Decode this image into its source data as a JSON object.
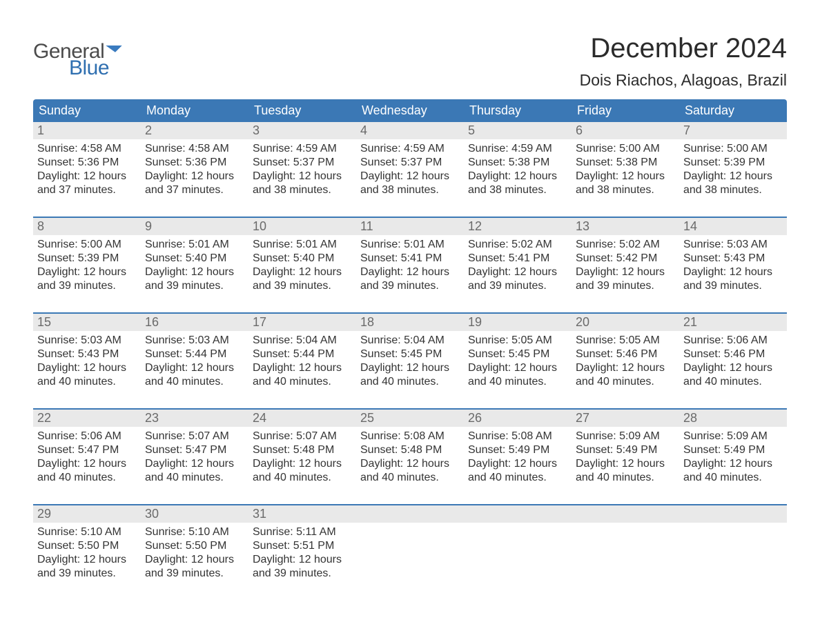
{
  "logo": {
    "word1": "General",
    "word2": "Blue"
  },
  "title": "December 2024",
  "location": "Dois Riachos, Alagoas, Brazil",
  "colors": {
    "header_bg": "#3b78b5",
    "header_text": "#ffffff",
    "daynum_bg": "#e9e9e9",
    "daynum_text": "#6a6a6a",
    "body_text": "#333333",
    "divider": "#3b78b5",
    "logo_gray": "#4b4b4b",
    "logo_blue": "#2f6fb0"
  },
  "day_headers": [
    "Sunday",
    "Monday",
    "Tuesday",
    "Wednesday",
    "Thursday",
    "Friday",
    "Saturday"
  ],
  "weeks": [
    [
      {
        "n": "1",
        "sr": "Sunrise: 4:58 AM",
        "ss": "Sunset: 5:36 PM",
        "d1": "Daylight: 12 hours",
        "d2": "and 37 minutes."
      },
      {
        "n": "2",
        "sr": "Sunrise: 4:58 AM",
        "ss": "Sunset: 5:36 PM",
        "d1": "Daylight: 12 hours",
        "d2": "and 37 minutes."
      },
      {
        "n": "3",
        "sr": "Sunrise: 4:59 AM",
        "ss": "Sunset: 5:37 PM",
        "d1": "Daylight: 12 hours",
        "d2": "and 38 minutes."
      },
      {
        "n": "4",
        "sr": "Sunrise: 4:59 AM",
        "ss": "Sunset: 5:37 PM",
        "d1": "Daylight: 12 hours",
        "d2": "and 38 minutes."
      },
      {
        "n": "5",
        "sr": "Sunrise: 4:59 AM",
        "ss": "Sunset: 5:38 PM",
        "d1": "Daylight: 12 hours",
        "d2": "and 38 minutes."
      },
      {
        "n": "6",
        "sr": "Sunrise: 5:00 AM",
        "ss": "Sunset: 5:38 PM",
        "d1": "Daylight: 12 hours",
        "d2": "and 38 minutes."
      },
      {
        "n": "7",
        "sr": "Sunrise: 5:00 AM",
        "ss": "Sunset: 5:39 PM",
        "d1": "Daylight: 12 hours",
        "d2": "and 38 minutes."
      }
    ],
    [
      {
        "n": "8",
        "sr": "Sunrise: 5:00 AM",
        "ss": "Sunset: 5:39 PM",
        "d1": "Daylight: 12 hours",
        "d2": "and 39 minutes."
      },
      {
        "n": "9",
        "sr": "Sunrise: 5:01 AM",
        "ss": "Sunset: 5:40 PM",
        "d1": "Daylight: 12 hours",
        "d2": "and 39 minutes."
      },
      {
        "n": "10",
        "sr": "Sunrise: 5:01 AM",
        "ss": "Sunset: 5:40 PM",
        "d1": "Daylight: 12 hours",
        "d2": "and 39 minutes."
      },
      {
        "n": "11",
        "sr": "Sunrise: 5:01 AM",
        "ss": "Sunset: 5:41 PM",
        "d1": "Daylight: 12 hours",
        "d2": "and 39 minutes."
      },
      {
        "n": "12",
        "sr": "Sunrise: 5:02 AM",
        "ss": "Sunset: 5:41 PM",
        "d1": "Daylight: 12 hours",
        "d2": "and 39 minutes."
      },
      {
        "n": "13",
        "sr": "Sunrise: 5:02 AM",
        "ss": "Sunset: 5:42 PM",
        "d1": "Daylight: 12 hours",
        "d2": "and 39 minutes."
      },
      {
        "n": "14",
        "sr": "Sunrise: 5:03 AM",
        "ss": "Sunset: 5:43 PM",
        "d1": "Daylight: 12 hours",
        "d2": "and 39 minutes."
      }
    ],
    [
      {
        "n": "15",
        "sr": "Sunrise: 5:03 AM",
        "ss": "Sunset: 5:43 PM",
        "d1": "Daylight: 12 hours",
        "d2": "and 40 minutes."
      },
      {
        "n": "16",
        "sr": "Sunrise: 5:03 AM",
        "ss": "Sunset: 5:44 PM",
        "d1": "Daylight: 12 hours",
        "d2": "and 40 minutes."
      },
      {
        "n": "17",
        "sr": "Sunrise: 5:04 AM",
        "ss": "Sunset: 5:44 PM",
        "d1": "Daylight: 12 hours",
        "d2": "and 40 minutes."
      },
      {
        "n": "18",
        "sr": "Sunrise: 5:04 AM",
        "ss": "Sunset: 5:45 PM",
        "d1": "Daylight: 12 hours",
        "d2": "and 40 minutes."
      },
      {
        "n": "19",
        "sr": "Sunrise: 5:05 AM",
        "ss": "Sunset: 5:45 PM",
        "d1": "Daylight: 12 hours",
        "d2": "and 40 minutes."
      },
      {
        "n": "20",
        "sr": "Sunrise: 5:05 AM",
        "ss": "Sunset: 5:46 PM",
        "d1": "Daylight: 12 hours",
        "d2": "and 40 minutes."
      },
      {
        "n": "21",
        "sr": "Sunrise: 5:06 AM",
        "ss": "Sunset: 5:46 PM",
        "d1": "Daylight: 12 hours",
        "d2": "and 40 minutes."
      }
    ],
    [
      {
        "n": "22",
        "sr": "Sunrise: 5:06 AM",
        "ss": "Sunset: 5:47 PM",
        "d1": "Daylight: 12 hours",
        "d2": "and 40 minutes."
      },
      {
        "n": "23",
        "sr": "Sunrise: 5:07 AM",
        "ss": "Sunset: 5:47 PM",
        "d1": "Daylight: 12 hours",
        "d2": "and 40 minutes."
      },
      {
        "n": "24",
        "sr": "Sunrise: 5:07 AM",
        "ss": "Sunset: 5:48 PM",
        "d1": "Daylight: 12 hours",
        "d2": "and 40 minutes."
      },
      {
        "n": "25",
        "sr": "Sunrise: 5:08 AM",
        "ss": "Sunset: 5:48 PM",
        "d1": "Daylight: 12 hours",
        "d2": "and 40 minutes."
      },
      {
        "n": "26",
        "sr": "Sunrise: 5:08 AM",
        "ss": "Sunset: 5:49 PM",
        "d1": "Daylight: 12 hours",
        "d2": "and 40 minutes."
      },
      {
        "n": "27",
        "sr": "Sunrise: 5:09 AM",
        "ss": "Sunset: 5:49 PM",
        "d1": "Daylight: 12 hours",
        "d2": "and 40 minutes."
      },
      {
        "n": "28",
        "sr": "Sunrise: 5:09 AM",
        "ss": "Sunset: 5:49 PM",
        "d1": "Daylight: 12 hours",
        "d2": "and 40 minutes."
      }
    ],
    [
      {
        "n": "29",
        "sr": "Sunrise: 5:10 AM",
        "ss": "Sunset: 5:50 PM",
        "d1": "Daylight: 12 hours",
        "d2": "and 39 minutes."
      },
      {
        "n": "30",
        "sr": "Sunrise: 5:10 AM",
        "ss": "Sunset: 5:50 PM",
        "d1": "Daylight: 12 hours",
        "d2": "and 39 minutes."
      },
      {
        "n": "31",
        "sr": "Sunrise: 5:11 AM",
        "ss": "Sunset: 5:51 PM",
        "d1": "Daylight: 12 hours",
        "d2": "and 39 minutes."
      },
      null,
      null,
      null,
      null
    ]
  ]
}
